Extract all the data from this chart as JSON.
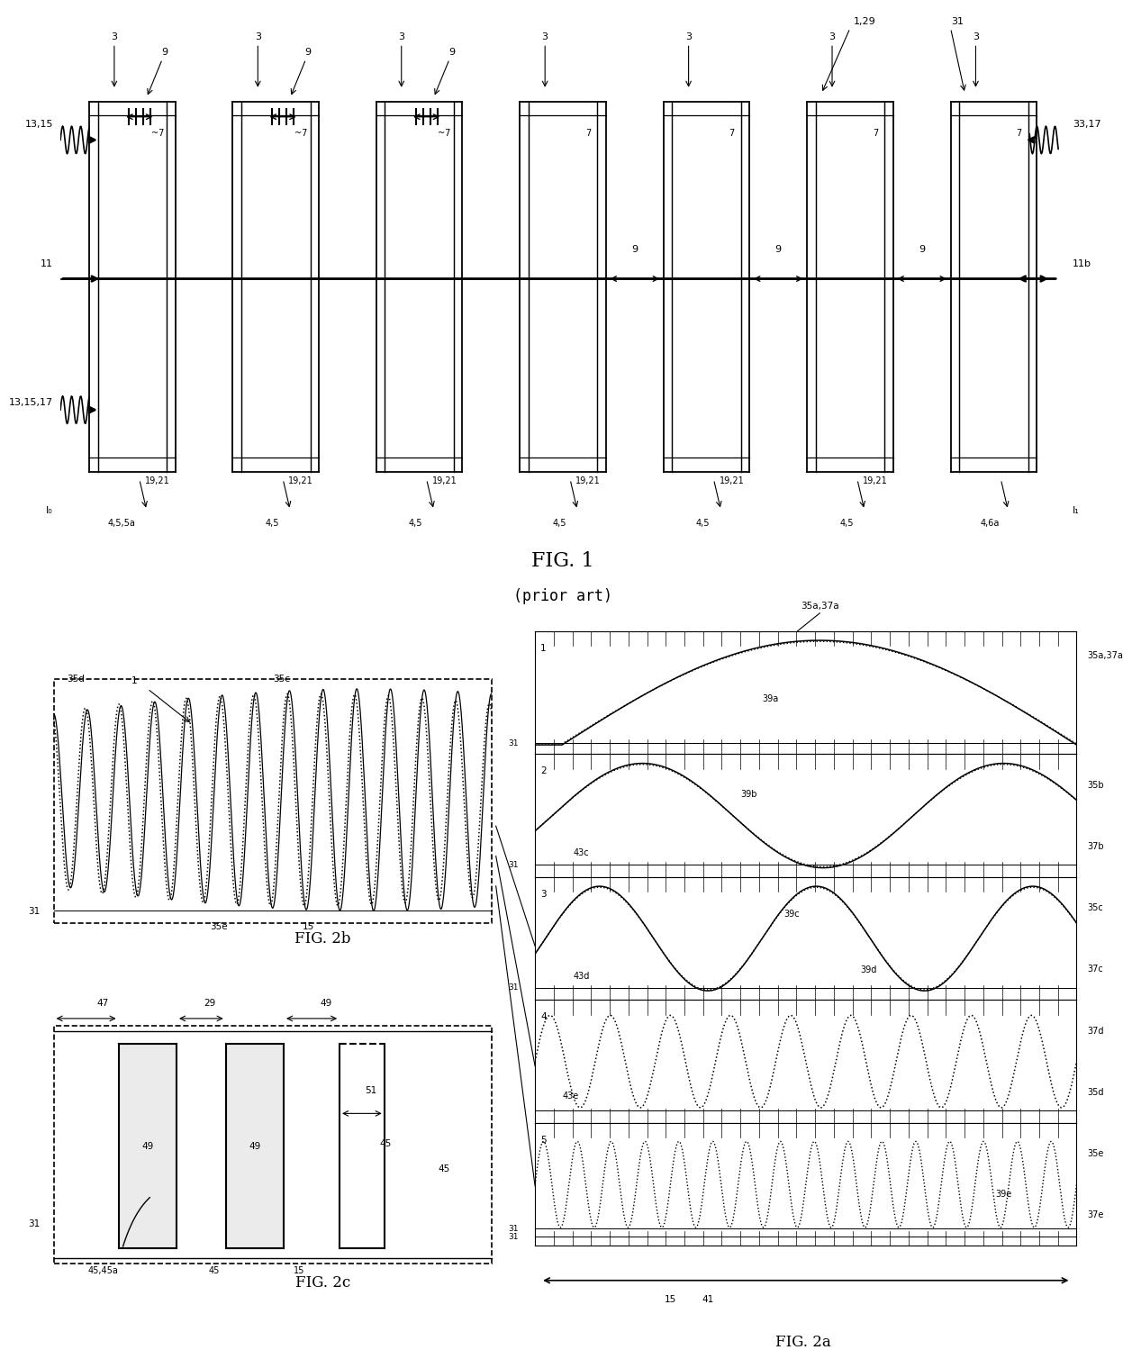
{
  "bg_color": "#ffffff",
  "fig1_title": "FIG. 1",
  "fig1_sub": "(prior art)",
  "fig2a_title": "FIG. 2a",
  "fig2b_title": "FIG. 2b",
  "fig2c_title": "FIG. 2c"
}
